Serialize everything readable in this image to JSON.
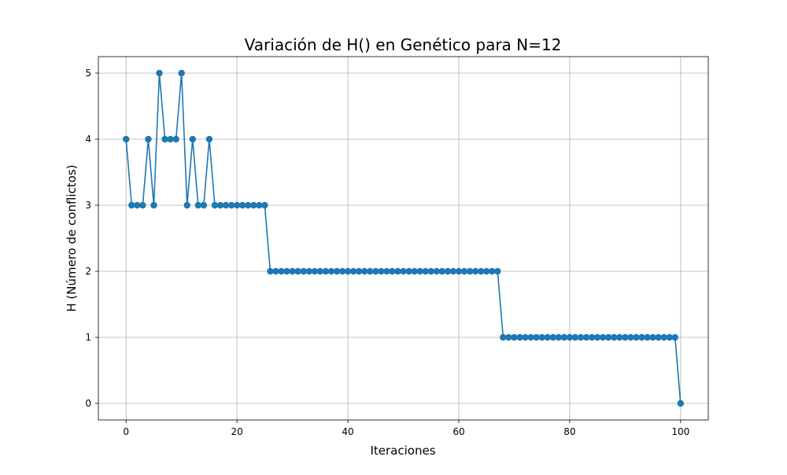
{
  "chart_data": {
    "type": "line",
    "title": "Variación de H() en Genético para N=12",
    "xlabel": "Iteraciones",
    "ylabel": "H (Número de conflictos)",
    "xlim": [
      -5,
      105
    ],
    "ylim": [
      -0.25,
      5.25
    ],
    "xticks": [
      0,
      20,
      40,
      60,
      80,
      100
    ],
    "yticks": [
      0,
      1,
      2,
      3,
      4,
      5
    ],
    "grid": true,
    "marker": "circle",
    "colors": {
      "series": "#1f77b4",
      "grid": "#b0b0b0",
      "axes": "#000000"
    },
    "series": [
      {
        "x": [
          0,
          1,
          2,
          3,
          4,
          5,
          6,
          7,
          8,
          9,
          10,
          11,
          12,
          13,
          14,
          15,
          16,
          17,
          18,
          19,
          20,
          21,
          22,
          23,
          24,
          25,
          26,
          27,
          28,
          29,
          30,
          31,
          32,
          33,
          34,
          35,
          36,
          37,
          38,
          39,
          40,
          41,
          42,
          43,
          44,
          45,
          46,
          47,
          48,
          49,
          50,
          51,
          52,
          53,
          54,
          55,
          56,
          57,
          58,
          59,
          60,
          61,
          62,
          63,
          64,
          65,
          66,
          67,
          68,
          69,
          70,
          71,
          72,
          73,
          74,
          75,
          76,
          77,
          78,
          79,
          80,
          81,
          82,
          83,
          84,
          85,
          86,
          87,
          88,
          89,
          90,
          91,
          92,
          93,
          94,
          95,
          96,
          97,
          98,
          99,
          100
        ],
        "y": [
          4,
          3,
          3,
          3,
          4,
          3,
          5,
          4,
          4,
          4,
          5,
          3,
          4,
          3,
          3,
          4,
          3,
          3,
          3,
          3,
          3,
          3,
          3,
          3,
          3,
          3,
          2,
          2,
          2,
          2,
          2,
          2,
          2,
          2,
          2,
          2,
          2,
          2,
          2,
          2,
          2,
          2,
          2,
          2,
          2,
          2,
          2,
          2,
          2,
          2,
          2,
          2,
          2,
          2,
          2,
          2,
          2,
          2,
          2,
          2,
          2,
          2,
          2,
          2,
          2,
          2,
          2,
          2,
          1,
          1,
          1,
          1,
          1,
          1,
          1,
          1,
          1,
          1,
          1,
          1,
          1,
          1,
          1,
          1,
          1,
          1,
          1,
          1,
          1,
          1,
          1,
          1,
          1,
          1,
          1,
          1,
          1,
          1,
          1,
          1,
          0
        ]
      }
    ]
  }
}
